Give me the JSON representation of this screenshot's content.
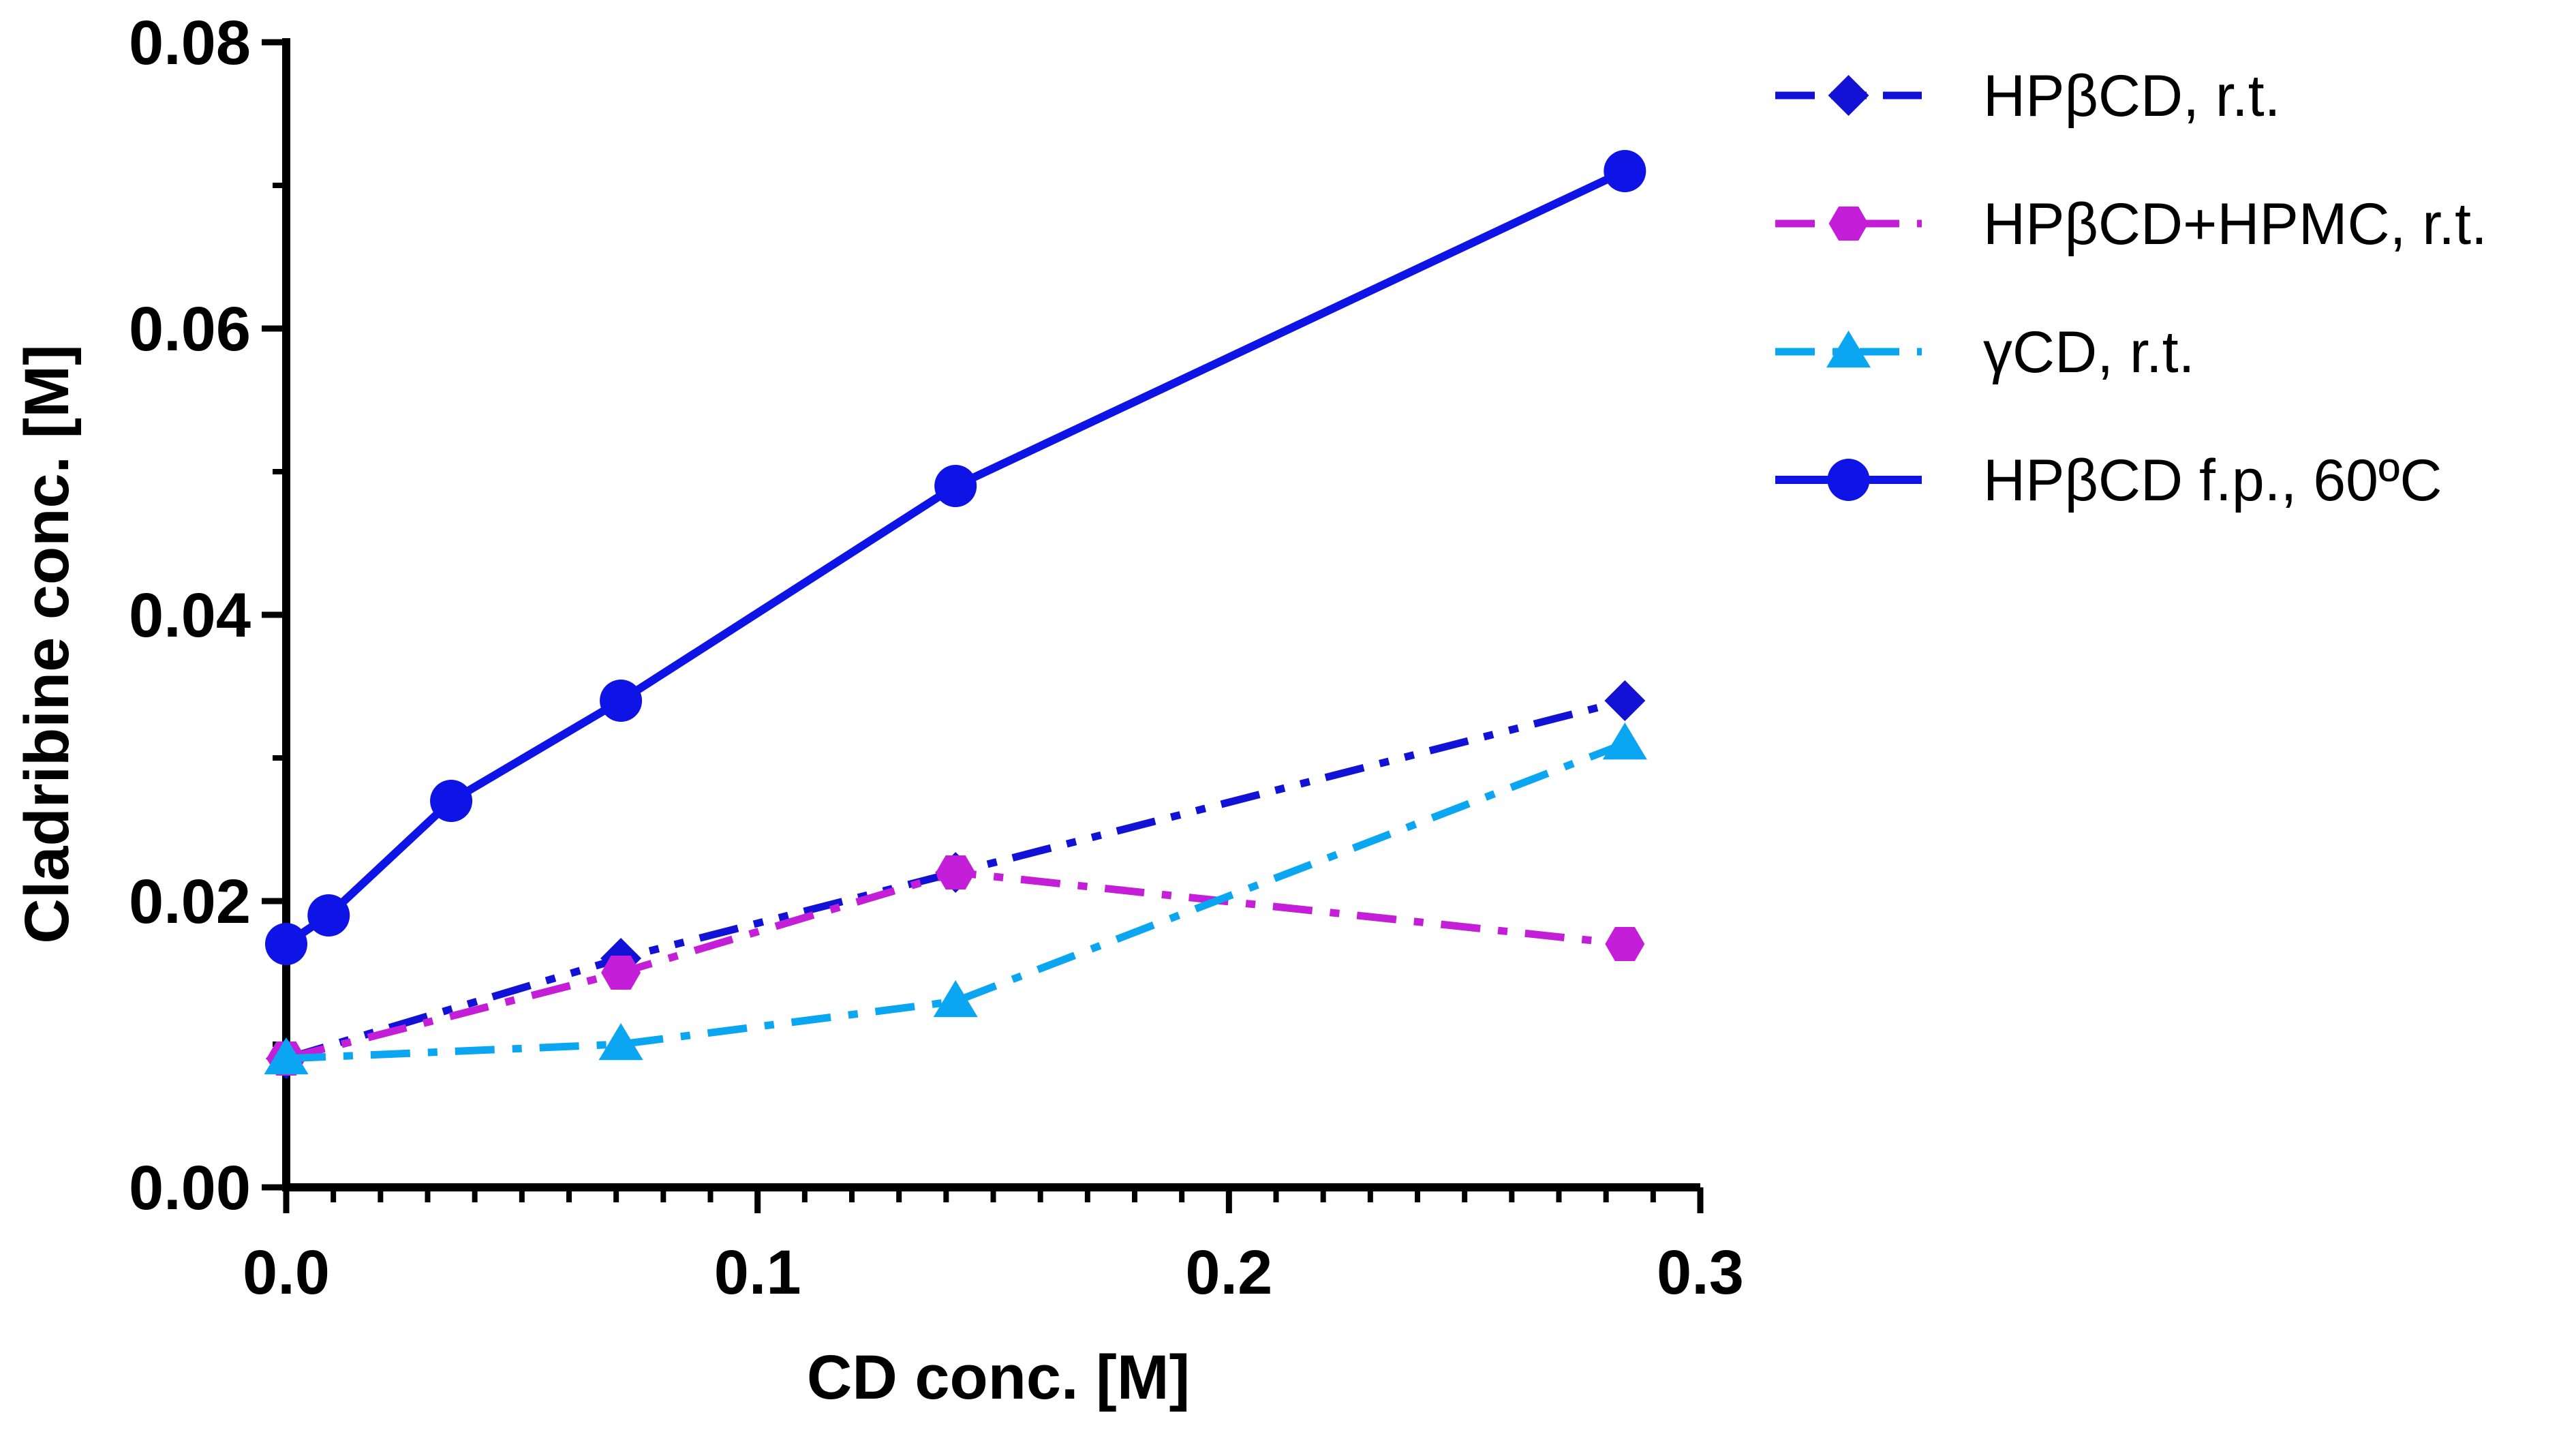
{
  "chart_data": {
    "type": "line",
    "title": "",
    "xlabel": "CD conc. [M]",
    "ylabel": "Cladribine conc. [M]",
    "xlim": [
      0,
      0.3
    ],
    "ylim": [
      0,
      0.08
    ],
    "x_ticks": [
      "0.0",
      "0.1",
      "0.2",
      "0.3"
    ],
    "y_ticks": [
      "0.00",
      "0.02",
      "0.04",
      "0.06",
      "0.08"
    ],
    "grid": false,
    "legend_position": "top-right",
    "series": [
      {
        "name": "HPβCD, r.t.",
        "color": "#1212d6",
        "marker": "diamond",
        "line_style": "dash-dot-dot",
        "x": [
          0,
          0.071,
          0.142,
          0.284
        ],
        "y": [
          0.009,
          0.016,
          0.022,
          0.034
        ]
      },
      {
        "name": "HPβCD+HPMC, r.t.",
        "color": "#c41ed8",
        "marker": "hexagon",
        "line_style": "dash-dot",
        "x": [
          0,
          0.071,
          0.142,
          0.284
        ],
        "y": [
          0.009,
          0.015,
          0.022,
          0.017
        ]
      },
      {
        "name": "γCD, r.t.",
        "color": "#0aa6f2",
        "marker": "triangle",
        "line_style": "dash-dot",
        "x": [
          0,
          0.071,
          0.142,
          0.284
        ],
        "y": [
          0.009,
          0.01,
          0.013,
          0.031
        ]
      },
      {
        "name": "HPβCD f.p., 60ºC",
        "color": "#0f14e6",
        "marker": "circle",
        "line_style": "solid",
        "x": [
          0,
          0.009,
          0.035,
          0.071,
          0.142,
          0.284
        ],
        "y": [
          0.017,
          0.019,
          0.027,
          0.034,
          0.049,
          0.071
        ]
      }
    ]
  }
}
